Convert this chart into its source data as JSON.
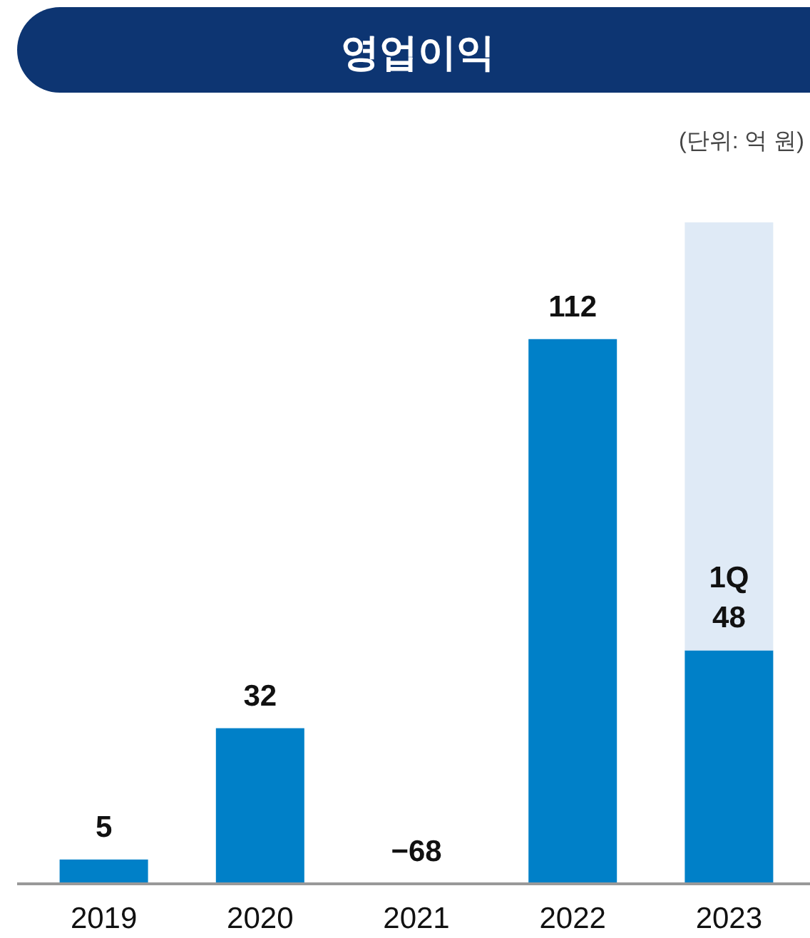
{
  "chart_data": {
    "type": "bar",
    "title": "영업이익",
    "subtitle": "(단위: 억 원)",
    "categories": [
      "2019",
      "2020",
      "2021",
      "2022",
      "2023"
    ],
    "stacked": true,
    "series": [
      {
        "color": "#0080c8",
        "values": [
          5,
          32,
          null,
          112,
          48
        ],
        "value_labels": [
          "5",
          "32",
          "−68",
          "112",
          "1Q\n48"
        ]
      },
      {
        "color": "#dfeaf6",
        "values": [
          null,
          null,
          null,
          null,
          88
        ]
      }
    ]
  }
}
